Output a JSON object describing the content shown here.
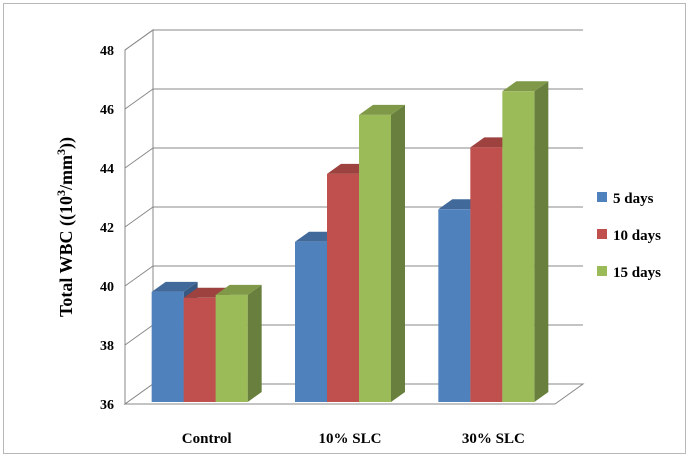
{
  "chart_data": {
    "type": "bar",
    "title": "",
    "xlabel": "",
    "ylabel": {
      "text": "Total WBC ((10",
      "sup1": "3",
      "mid": "/mm",
      "sup2": "3",
      "end": "))"
    },
    "categories": [
      "Control",
      "10% SLC",
      "30% SLC"
    ],
    "series": [
      {
        "name": "5 days",
        "values": [
          39.8,
          41.5,
          42.6
        ],
        "color": "#4f81bd"
      },
      {
        "name": "10 days",
        "values": [
          39.6,
          43.8,
          44.7
        ],
        "color": "#c0504d"
      },
      {
        "name": "15 days",
        "values": [
          39.7,
          45.8,
          46.6
        ],
        "color": "#9bbb59"
      }
    ],
    "ylim": [
      36,
      48
    ],
    "yticks": [
      36,
      38,
      40,
      42,
      44,
      46,
      48
    ],
    "grid": true,
    "legend": "right",
    "three_d": true
  }
}
